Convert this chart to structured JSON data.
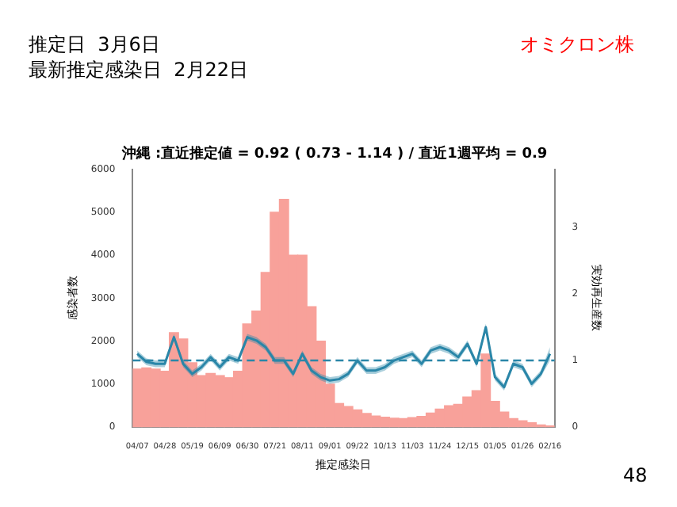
{
  "chart_data": {
    "type": "bar",
    "title": "沖縄 :直近推定値 = 0.92 ( 0.73 - 1.14 ) / 直近1週平均 = 0.9",
    "xlabel": "推定感染日",
    "ylabel": "感染者数",
    "y2label": "実効再生産数",
    "annotations": [
      "推定日  3月6日",
      "最新推定感染日  2月22日",
      "オミクロン株",
      "48"
    ],
    "categories": [
      "04/07",
      null,
      null,
      "04/28",
      null,
      null,
      "05/19",
      null,
      null,
      "06/09",
      null,
      null,
      "06/30",
      null,
      null,
      "07/21",
      null,
      null,
      "08/11",
      null,
      null,
      "09/01",
      null,
      null,
      "09/22",
      null,
      null,
      "10/13",
      null,
      null,
      "11/03",
      null,
      null,
      "11/24",
      null,
      null,
      "12/15",
      null,
      null,
      "01/05",
      null,
      null,
      "01/26",
      null,
      null,
      "02/16"
    ],
    "series": [
      {
        "color": "#f8a19a",
        "values": [
          1350,
          1380,
          1350,
          1300,
          2200,
          2050,
          1500,
          1200,
          1250,
          1200,
          1150,
          1300,
          2400,
          2700,
          3600,
          5000,
          5300,
          4000,
          4000,
          2800,
          2000,
          1000,
          550,
          480,
          400,
          320,
          260,
          230,
          210,
          200,
          220,
          250,
          330,
          420,
          500,
          530,
          700,
          850,
          1700,
          600,
          350,
          200,
          150,
          100,
          50,
          30
        ]
      },
      {
        "type": "line",
        "axis": "y2",
        "color": "#2a86a8",
        "values": [
          1.1,
          0.98,
          0.95,
          0.95,
          1.35,
          0.95,
          0.8,
          0.9,
          1.05,
          0.9,
          1.05,
          1.0,
          1.35,
          1.3,
          1.2,
          1.0,
          1.0,
          0.8,
          1.1,
          0.85,
          0.75,
          0.7,
          0.72,
          0.8,
          1.0,
          0.85,
          0.85,
          0.9,
          1.0,
          1.05,
          1.1,
          0.95,
          1.15,
          1.2,
          1.15,
          1.05,
          1.25,
          0.95,
          1.5,
          0.75,
          0.6,
          0.95,
          0.9,
          0.65,
          0.8,
          1.1
        ],
        "lower": [
          1.05,
          0.93,
          0.9,
          0.9,
          1.3,
          0.9,
          0.75,
          0.85,
          1.0,
          0.85,
          1.0,
          0.95,
          1.3,
          1.25,
          1.15,
          0.95,
          0.95,
          0.75,
          1.05,
          0.8,
          0.7,
          0.65,
          0.67,
          0.75,
          0.95,
          0.8,
          0.8,
          0.85,
          0.95,
          1.0,
          1.05,
          0.9,
          1.1,
          1.15,
          1.1,
          1.0,
          1.2,
          0.9,
          1.45,
          0.7,
          0.55,
          0.9,
          0.85,
          0.6,
          0.75,
          1.0
        ],
        "upper": [
          1.15,
          1.03,
          1.0,
          1.0,
          1.4,
          1.0,
          0.85,
          0.95,
          1.1,
          0.95,
          1.1,
          1.05,
          1.4,
          1.35,
          1.25,
          1.05,
          1.05,
          0.85,
          1.15,
          0.9,
          0.8,
          0.75,
          0.77,
          0.85,
          1.05,
          0.9,
          0.9,
          0.95,
          1.05,
          1.1,
          1.15,
          1.0,
          1.2,
          1.25,
          1.2,
          1.1,
          1.3,
          1.0,
          1.55,
          0.8,
          0.65,
          1.0,
          0.95,
          0.7,
          0.85,
          1.2
        ]
      }
    ],
    "ylim": [
      0,
      6000
    ],
    "yticks": [
      0,
      1000,
      2000,
      3000,
      4000,
      5000,
      6000
    ],
    "y2lim": [
      0,
      3.87
    ],
    "y2ticks": [
      0,
      1,
      2,
      3
    ],
    "ref_lines": [
      {
        "axis": "y2",
        "value": 1,
        "color": "#2a86a8",
        "line_style": "dashed"
      }
    ],
    "grid": false,
    "legend": false
  }
}
